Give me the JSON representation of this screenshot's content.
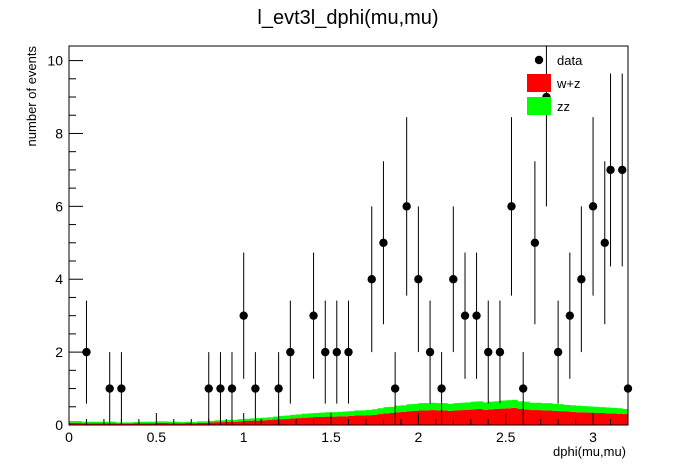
{
  "chart_data": {
    "type": "bar",
    "title": "l_evt3l_dphi(mu,mu)",
    "xlabel": "dphi(mu,mu)",
    "ylabel": "number of events",
    "xlim": [
      0,
      3.2
    ],
    "ylim": [
      0,
      10.4
    ],
    "x_ticks": [
      "0",
      "0.5",
      "1",
      "1.5",
      "2",
      "2.5",
      "3"
    ],
    "y_ticks": [
      "0",
      "2",
      "4",
      "6",
      "8",
      "10"
    ],
    "legend_position": "top-right",
    "stacked": true,
    "bin_centers": [
      0.0167,
      0.05,
      0.0833,
      0.1167,
      0.15,
      0.1833,
      0.2167,
      0.25,
      0.2833,
      0.3167,
      0.35,
      0.3833,
      0.4167,
      0.45,
      0.4833,
      0.5167,
      0.55,
      0.5833,
      0.6167,
      0.65,
      0.6833,
      0.7167,
      0.75,
      0.7833,
      0.8167,
      0.85,
      0.8833,
      0.9167,
      0.95,
      0.9833,
      1.0167,
      1.05,
      1.0833,
      1.1167,
      1.15,
      1.1833,
      1.2167,
      1.25,
      1.2833,
      1.3167,
      1.35,
      1.3833,
      1.4167,
      1.45,
      1.4833,
      1.5167,
      1.55,
      1.5833,
      1.6167,
      1.65,
      1.6833,
      1.7167,
      1.75,
      1.7833,
      1.8167,
      1.85,
      1.8833,
      1.9167,
      1.95,
      1.9833,
      2.0167,
      2.05,
      2.0833,
      2.1167,
      2.15,
      2.1833,
      2.2167,
      2.25,
      2.2833,
      2.3167,
      2.35,
      2.3833,
      2.4167,
      2.45,
      2.4833,
      2.5167,
      2.55,
      2.5833,
      2.6167,
      2.65,
      2.6833,
      2.7167,
      2.75,
      2.7833,
      2.8167,
      2.85,
      2.8833,
      2.9167,
      2.95,
      2.9833,
      3.0167,
      3.05,
      3.0833,
      3.1167,
      3.15,
      3.1833
    ],
    "series": [
      {
        "name": "w+z",
        "color": "#ff0000",
        "values": [
          0.06,
          0.06,
          0.05,
          0.05,
          0.05,
          0.05,
          0.05,
          0.05,
          0.04,
          0.04,
          0.04,
          0.05,
          0.05,
          0.05,
          0.05,
          0.06,
          0.06,
          0.05,
          0.05,
          0.05,
          0.06,
          0.05,
          0.06,
          0.06,
          0.07,
          0.08,
          0.08,
          0.09,
          0.09,
          0.1,
          0.11,
          0.12,
          0.12,
          0.13,
          0.14,
          0.15,
          0.16,
          0.17,
          0.18,
          0.19,
          0.2,
          0.21,
          0.22,
          0.22,
          0.23,
          0.23,
          0.24,
          0.24,
          0.25,
          0.26,
          0.26,
          0.27,
          0.28,
          0.3,
          0.32,
          0.33,
          0.35,
          0.36,
          0.38,
          0.39,
          0.4,
          0.4,
          0.41,
          0.4,
          0.4,
          0.39,
          0.4,
          0.41,
          0.42,
          0.43,
          0.44,
          0.42,
          0.43,
          0.44,
          0.45,
          0.46,
          0.47,
          0.44,
          0.43,
          0.41,
          0.41,
          0.4,
          0.4,
          0.39,
          0.38,
          0.37,
          0.36,
          0.35,
          0.35,
          0.34,
          0.33,
          0.33,
          0.32,
          0.32,
          0.31,
          0.3
        ]
      },
      {
        "name": "zz",
        "color": "#00ff00",
        "values": [
          0.05,
          0.05,
          0.04,
          0.04,
          0.04,
          0.04,
          0.04,
          0.04,
          0.03,
          0.03,
          0.03,
          0.03,
          0.04,
          0.04,
          0.04,
          0.04,
          0.04,
          0.04,
          0.04,
          0.03,
          0.03,
          0.03,
          0.04,
          0.04,
          0.04,
          0.05,
          0.05,
          0.05,
          0.05,
          0.06,
          0.06,
          0.06,
          0.07,
          0.07,
          0.07,
          0.08,
          0.09,
          0.09,
          0.1,
          0.1,
          0.11,
          0.11,
          0.11,
          0.12,
          0.12,
          0.12,
          0.12,
          0.13,
          0.13,
          0.14,
          0.14,
          0.14,
          0.15,
          0.16,
          0.17,
          0.17,
          0.18,
          0.18,
          0.19,
          0.19,
          0.2,
          0.2,
          0.2,
          0.2,
          0.2,
          0.19,
          0.2,
          0.2,
          0.2,
          0.21,
          0.21,
          0.2,
          0.21,
          0.21,
          0.22,
          0.22,
          0.22,
          0.21,
          0.21,
          0.2,
          0.2,
          0.2,
          0.2,
          0.19,
          0.19,
          0.18,
          0.18,
          0.18,
          0.17,
          0.17,
          0.17,
          0.16,
          0.16,
          0.15,
          0.15,
          0.14
        ]
      }
    ],
    "data_points": {
      "name": "data",
      "color": "#000000",
      "points": [
        {
          "x": 0.1,
          "y": 2
        },
        {
          "x": 0.233,
          "y": 1
        },
        {
          "x": 0.3,
          "y": 1
        },
        {
          "x": 0.8,
          "y": 1
        },
        {
          "x": 0.867,
          "y": 1
        },
        {
          "x": 0.933,
          "y": 1
        },
        {
          "x": 1.0,
          "y": 3
        },
        {
          "x": 1.067,
          "y": 1
        },
        {
          "x": 1.2,
          "y": 1
        },
        {
          "x": 1.267,
          "y": 2
        },
        {
          "x": 1.4,
          "y": 3
        },
        {
          "x": 1.467,
          "y": 2
        },
        {
          "x": 1.533,
          "y": 2
        },
        {
          "x": 1.6,
          "y": 2
        },
        {
          "x": 1.733,
          "y": 4
        },
        {
          "x": 1.8,
          "y": 5
        },
        {
          "x": 1.867,
          "y": 1
        },
        {
          "x": 1.933,
          "y": 6
        },
        {
          "x": 2.0,
          "y": 4
        },
        {
          "x": 2.067,
          "y": 2
        },
        {
          "x": 2.133,
          "y": 1
        },
        {
          "x": 2.2,
          "y": 4
        },
        {
          "x": 2.267,
          "y": 3
        },
        {
          "x": 2.333,
          "y": 3
        },
        {
          "x": 2.4,
          "y": 2
        },
        {
          "x": 2.467,
          "y": 2
        },
        {
          "x": 2.533,
          "y": 6
        },
        {
          "x": 2.6,
          "y": 1
        },
        {
          "x": 2.667,
          "y": 5
        },
        {
          "x": 2.733,
          "y": 9
        },
        {
          "x": 2.8,
          "y": 2
        },
        {
          "x": 2.867,
          "y": 3
        },
        {
          "x": 2.933,
          "y": 4
        },
        {
          "x": 3.0,
          "y": 6
        },
        {
          "x": 3.067,
          "y": 5
        },
        {
          "x": 3.1,
          "y": 7
        },
        {
          "x": 3.167,
          "y": 7
        },
        {
          "x": 3.2,
          "y": 1
        }
      ]
    },
    "legend": [
      {
        "label": "data",
        "kind": "marker",
        "color": "#000000"
      },
      {
        "label": "w+z",
        "kind": "box",
        "color": "#ff0000"
      },
      {
        "label": "zz",
        "kind": "box",
        "color": "#00ff00"
      }
    ]
  }
}
